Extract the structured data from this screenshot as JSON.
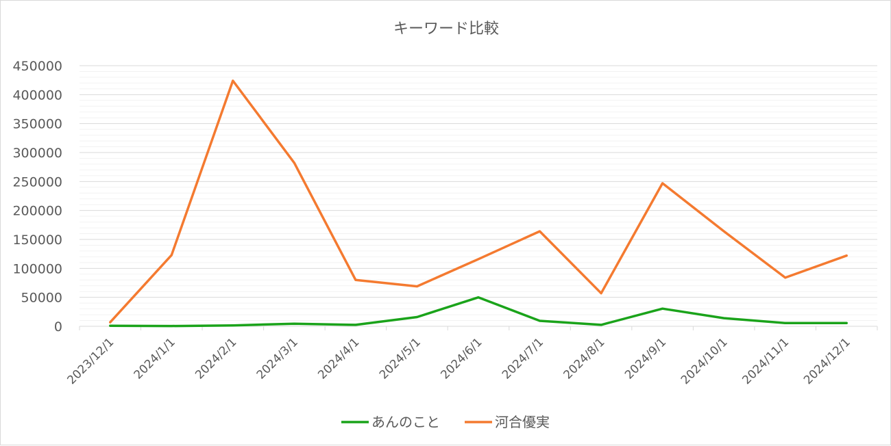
{
  "chart_data": {
    "type": "line",
    "title": "キーワード比較",
    "categories": [
      "2023/12/1",
      "2024/1/1",
      "2024/2/1",
      "2024/3/1",
      "2024/4/1",
      "2024/5/1",
      "2024/6/1",
      "2024/7/1",
      "2024/8/1",
      "2024/9/1",
      "2024/10/1",
      "2024/11/1",
      "2024/12/1"
    ],
    "series": [
      {
        "name": "あんのこと",
        "color": "#1aa31a",
        "values": [
          1000,
          500,
          1500,
          4500,
          2500,
          16000,
          50000,
          9500,
          2500,
          30500,
          14000,
          5500,
          5500
        ]
      },
      {
        "name": "河合優実",
        "color": "#f47a30",
        "values": [
          7000,
          123000,
          424000,
          282000,
          80000,
          69000,
          116000,
          164000,
          57000,
          247000,
          164000,
          84000,
          122000
        ]
      }
    ],
    "ylim": [
      0,
      450000
    ],
    "yticks": [
      0,
      50000,
      100000,
      150000,
      200000,
      250000,
      300000,
      350000,
      400000,
      450000
    ],
    "grid": true,
    "legend_position": "bottom"
  }
}
